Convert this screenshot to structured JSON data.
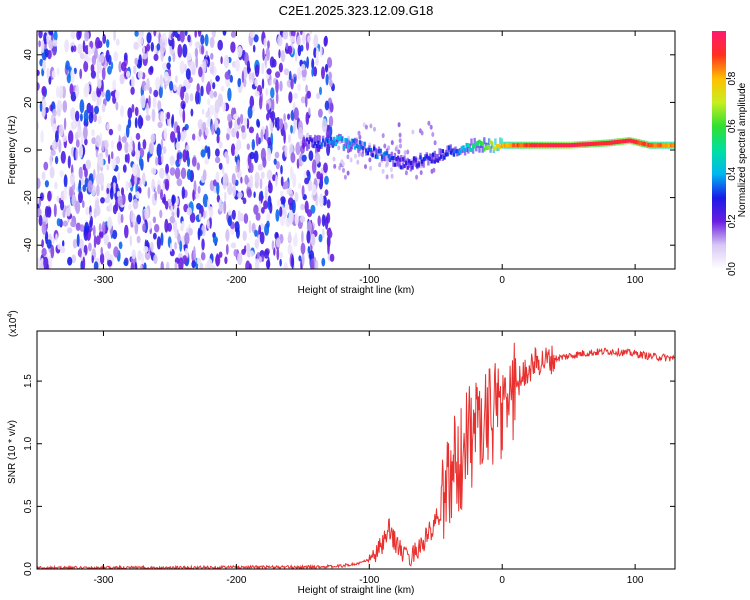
{
  "title": "C2E1.2025.323.12.09.G18",
  "chart_data": [
    {
      "type": "heatmap",
      "title": "C2E1.2025.323.12.09.G18",
      "xlabel": "Height of straight line (km)",
      "ylabel": "Frequency (Hz)",
      "xlim": [
        -350,
        130
      ],
      "ylim": [
        -50,
        50
      ],
      "x_ticks": [
        -300,
        -200,
        -100,
        0,
        100
      ],
      "x_tick_labels": [
        "-300",
        "-200",
        "-100",
        "0",
        "100"
      ],
      "y_ticks": [
        -40,
        -20,
        0,
        20,
        40
      ],
      "y_tick_labels": [
        "-40",
        "-20",
        "0",
        "20",
        "40"
      ],
      "colorbar": {
        "label": "Normalized spectral amplitude",
        "range": [
          0.0,
          1.0
        ],
        "ticks": [
          0.0,
          0.2,
          0.4,
          0.6,
          0.8
        ],
        "tick_labels": [
          "0.0",
          "0.2",
          "0.4",
          "0.6",
          "0.8"
        ]
      },
      "noise_region_x": [
        -350,
        -127
      ],
      "line_track": [
        {
          "x": -150,
          "f": 3,
          "a": 0.25
        },
        {
          "x": -140,
          "f": 3,
          "a": 0.35
        },
        {
          "x": -130,
          "f": 4,
          "a": 0.4
        },
        {
          "x": -120,
          "f": 3,
          "a": 0.45
        },
        {
          "x": -110,
          "f": 2,
          "a": 0.4
        },
        {
          "x": -100,
          "f": 0,
          "a": 0.35
        },
        {
          "x": -90,
          "f": -2,
          "a": 0.4
        },
        {
          "x": -80,
          "f": -5,
          "a": 0.3
        },
        {
          "x": -70,
          "f": -6,
          "a": 0.3
        },
        {
          "x": -60,
          "f": -4,
          "a": 0.35
        },
        {
          "x": -50,
          "f": -3,
          "a": 0.3
        },
        {
          "x": -40,
          "f": -1,
          "a": 0.35
        },
        {
          "x": -30,
          "f": 1,
          "a": 0.45
        },
        {
          "x": -20,
          "f": 2,
          "a": 0.6
        },
        {
          "x": -10,
          "f": 2,
          "a": 0.7
        },
        {
          "x": 0,
          "f": 2,
          "a": 0.85
        },
        {
          "x": 20,
          "f": 2,
          "a": 0.95
        },
        {
          "x": 50,
          "f": 2,
          "a": 1.0
        },
        {
          "x": 80,
          "f": 3,
          "a": 0.95
        },
        {
          "x": 95,
          "f": 4,
          "a": 1.0
        },
        {
          "x": 110,
          "f": 2,
          "a": 0.9
        },
        {
          "x": 130,
          "f": 2,
          "a": 0.85
        }
      ]
    },
    {
      "type": "line",
      "xlabel": "Height of straight line (km)",
      "ylabel": "SNR (10 * v/v)",
      "y_multiplier_label": "(x10",
      "y_multiplier_exponent": "4",
      "y_multiplier_close": ")",
      "xlim": [
        -350,
        130
      ],
      "ylim": [
        0,
        1.9
      ],
      "x_ticks": [
        -300,
        -200,
        -100,
        0,
        100
      ],
      "x_tick_labels": [
        "-300",
        "-200",
        "-100",
        "0",
        "100"
      ],
      "y_ticks": [
        0.0,
        0.5,
        1.0,
        1.5
      ],
      "y_tick_labels": [
        "0.0",
        "0.5",
        "1.0",
        "1.5"
      ],
      "color": "#e8312f",
      "series": [
        {
          "x": [
            -350,
            -300,
            -250,
            -200,
            -150,
            -125,
            -110,
            -100,
            -95,
            -90,
            -85,
            -80,
            -75,
            -70,
            -65,
            -60,
            -55,
            -50,
            -45,
            -40,
            -35,
            -30,
            -25,
            -20,
            -15,
            -10,
            -5,
            0,
            5,
            10,
            15,
            20,
            25,
            30,
            40,
            50,
            60,
            70,
            80,
            90,
            100,
            110,
            120,
            130
          ],
          "y": [
            0.01,
            0.01,
            0.01,
            0.015,
            0.015,
            0.02,
            0.04,
            0.07,
            0.12,
            0.2,
            0.3,
            0.22,
            0.12,
            0.08,
            0.15,
            0.2,
            0.28,
            0.35,
            0.55,
            0.72,
            0.85,
            0.9,
            1.05,
            1.1,
            1.1,
            1.15,
            1.2,
            1.25,
            1.4,
            1.45,
            1.55,
            1.6,
            1.65,
            1.66,
            1.68,
            1.7,
            1.72,
            1.73,
            1.74,
            1.73,
            1.72,
            1.7,
            1.69,
            1.68
          ]
        }
      ]
    }
  ]
}
